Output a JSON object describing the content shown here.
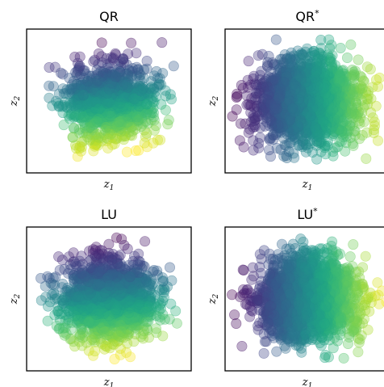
{
  "chart_data": [
    {
      "type": "scatter",
      "title": "QR",
      "xlabel_base": "z",
      "xlabel_sub": "1",
      "ylabel_base": "z",
      "ylabel_sub": "2",
      "xlim": [
        -3.5,
        3.5
      ],
      "ylim": [
        -3.5,
        3.5
      ],
      "grid": false,
      "colormap": "viridis",
      "distribution": {
        "n_points": 1000,
        "sx": 0.95,
        "sy": 0.95,
        "clip_x": 2.8,
        "clip_y": 2.9
      },
      "color_direction": [
        0.15,
        -1.0
      ],
      "seed": 11
    },
    {
      "type": "scatter",
      "title": "QR",
      "title_sup": "*",
      "xlabel_base": "z",
      "xlabel_sub": "1",
      "ylabel_base": "z",
      "ylabel_sub": "2",
      "xlim": [
        -3.5,
        3.5
      ],
      "ylim": [
        -3.5,
        3.5
      ],
      "grid": false,
      "colormap": "viridis",
      "distribution": {
        "n_points": 2000,
        "sx": 1.05,
        "sy": 1.0,
        "clip_x": 3.6,
        "clip_y": 3.0
      },
      "color_direction": [
        1.0,
        0.0
      ],
      "seed": 23
    },
    {
      "type": "scatter",
      "title": "LU",
      "xlabel_base": "z",
      "xlabel_sub": "1",
      "ylabel_base": "z",
      "ylabel_sub": "2",
      "xlim": [
        -3.5,
        3.5
      ],
      "ylim": [
        -3.5,
        3.5
      ],
      "grid": false,
      "colormap": "viridis",
      "distribution": {
        "n_points": 1500,
        "sx": 1.0,
        "sy": 1.0,
        "clip_x": 3.0,
        "clip_y": 3.0
      },
      "color_direction": [
        0.1,
        -1.0
      ],
      "seed": 37
    },
    {
      "type": "scatter",
      "title": "LU",
      "title_sup": "*",
      "xlabel_base": "z",
      "xlabel_sub": "1",
      "ylabel_base": "z",
      "ylabel_sub": "2",
      "xlim": [
        -3.5,
        3.5
      ],
      "ylim": [
        -3.5,
        3.5
      ],
      "grid": false,
      "colormap": "viridis",
      "distribution": {
        "n_points": 2000,
        "sx": 1.05,
        "sy": 1.0,
        "clip_x": 3.6,
        "clip_y": 3.0
      },
      "color_direction": [
        1.0,
        0.0
      ],
      "seed": 51
    }
  ],
  "colors": {
    "marker_alpha": 0.35,
    "frame": "#000000",
    "background": "#ffffff"
  }
}
